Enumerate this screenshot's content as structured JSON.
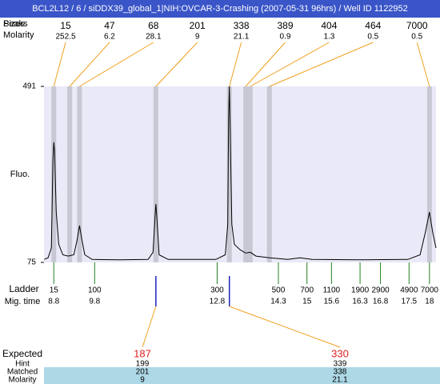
{
  "chart_data": {
    "type": "electropherogram",
    "title": "BCL2L12 / 6 / siDDX39_global_1|NIH:OVCAR-3-Crashing (2007-05-31 96hrs) / Well ID 1122952",
    "ylabel": "Fluo.",
    "xlim": [
      8.56,
      18.16
    ],
    "ylim": [
      75,
      491
    ],
    "yticks": [
      75,
      491
    ],
    "trace": {
      "color": "#000000",
      "x": [
        8.565,
        8.66,
        8.74,
        8.78,
        8.8,
        8.82,
        8.86,
        8.92,
        9.02,
        9.15,
        9.29,
        9.37,
        9.43,
        9.49,
        9.56,
        9.74,
        10.42,
        11.11,
        11.23,
        11.29,
        11.3,
        11.32,
        11.38,
        11.6,
        12.77,
        13.0,
        13.06,
        13.08,
        13.1,
        13.12,
        13.16,
        13.22,
        13.36,
        13.5,
        13.61,
        13.75,
        14.08,
        14.53,
        14.83,
        15.12,
        16.3,
        17.47,
        17.77,
        17.9,
        18.0,
        18.08,
        18.16
      ],
      "y": [
        82,
        86,
        109,
        317,
        359,
        336,
        194,
        118,
        93,
        90,
        93,
        127,
        162,
        127,
        93,
        82,
        81,
        82,
        99,
        199,
        213,
        185,
        93,
        82,
        82,
        93,
        165,
        411,
        491,
        392,
        165,
        118,
        105,
        97,
        99,
        90,
        86,
        82,
        86,
        82,
        81,
        82,
        93,
        146,
        194,
        146,
        109
      ]
    },
    "peaks": {
      "peaks_label": "Peaks",
      "sizes_label": "Sizes",
      "molarity_label": "Molarity",
      "sizes": [
        15,
        47,
        68,
        201,
        338,
        389,
        404,
        464,
        7000
      ],
      "molarity": [
        252.5,
        6.2,
        28.1,
        9,
        21.1,
        0.9,
        1.3,
        0.5,
        0.5
      ],
      "times": [
        8.8,
        9.19,
        9.43,
        11.3,
        13.1,
        13.5,
        13.61,
        14.08,
        18.0
      ]
    },
    "ladder": {
      "label": "Ladder",
      "time_label": "Mig. time",
      "sizes": [
        15,
        100,
        300,
        500,
        700,
        1100,
        1900,
        2900,
        4900,
        7000
      ],
      "mig_time": [
        8.8,
        9.8,
        12.8,
        14.3,
        15,
        15.6,
        16.3,
        16.8,
        17.5,
        18
      ]
    },
    "expected": {
      "label": "Expected",
      "hint_label": "Hint",
      "matched_label": "Matched",
      "molarity_label": "Molarity",
      "expected": [
        187,
        330
      ],
      "hint": [
        199,
        339
      ],
      "matched": [
        201,
        338
      ],
      "molarity": [
        9,
        21.1
      ],
      "matched_times": [
        11.3,
        13.1
      ]
    }
  }
}
